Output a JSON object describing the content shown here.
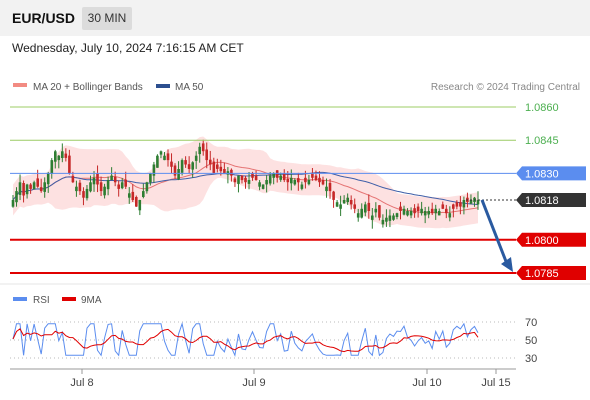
{
  "header": {
    "symbol": "EUR/USD",
    "timeframe": "30 MIN",
    "datetime": "Wednesday, July 10, 2024 7:16:15 AM CET"
  },
  "legend": {
    "ma20": "MA 20 + Bollinger Bands",
    "ma50": "MA 50",
    "copyright": "Research © 2024 Trading Central"
  },
  "rsi_legend": {
    "rsi": "RSI",
    "ma": "9MA"
  },
  "colors": {
    "up_candle": "#2e7d32",
    "down_candle": "#c62828",
    "ma20": "#e57373",
    "ma50": "#3f5fa8",
    "bollinger_fill": "#fcd9d9",
    "resistance_green": "#9ccc65",
    "pivot_blue": "#5b8def",
    "support_red": "#e00000",
    "price_tag": "#333333",
    "arrow": "#2a5aa0",
    "rsi_line": "#5b8def",
    "rsi_ma": "#e00000"
  },
  "chart_data": [
    {
      "type": "line",
      "title": "",
      "description": "EUR/USD 30-minute candlestick with MA 20 + Bollinger Bands and MA 50",
      "xlabel": "",
      "ylabel": "",
      "x_ticks": [
        "Jul 8",
        "Jul 9",
        "Jul 10",
        "Jul 15"
      ],
      "ylim": [
        1.078,
        1.0866
      ],
      "levels": [
        {
          "value": "1.0860",
          "kind": "resistance"
        },
        {
          "value": "1.0845",
          "kind": "resistance"
        },
        {
          "value": "1.0830",
          "kind": "pivot"
        },
        {
          "value": "1.0800",
          "kind": "support"
        },
        {
          "value": "1.0785",
          "kind": "support"
        }
      ],
      "current_price": "1.0818",
      "forecast": {
        "from": 1.0818,
        "to": 1.0785,
        "direction": "down"
      },
      "closes": [
        1.0818,
        1.0822,
        1.0826,
        1.082,
        1.0825,
        1.0823,
        1.0826,
        1.0824,
        1.0822,
        1.0826,
        1.083,
        1.0836,
        1.084,
        1.0838,
        1.084,
        1.0837,
        1.083,
        1.0826,
        1.0824,
        1.0822,
        1.0819,
        1.0823,
        1.0826,
        1.0828,
        1.0825,
        1.0822,
        1.0824,
        1.0827,
        1.0829,
        1.0826,
        1.0823,
        1.0826,
        1.0824,
        1.0821,
        1.0818,
        1.0815,
        1.0818,
        1.0822,
        1.0826,
        1.083,
        1.0834,
        1.0838,
        1.084,
        1.0838,
        1.0836,
        1.0833,
        1.0829,
        1.0832,
        1.0836,
        1.0834,
        1.0832,
        1.0835,
        1.0838,
        1.0842,
        1.084,
        1.0836,
        1.0834,
        1.083,
        1.0832,
        1.0831,
        1.083,
        1.0831,
        1.0829,
        1.0826,
        1.0829,
        1.0827,
        1.0826,
        1.0827,
        1.0828,
        1.0827,
        1.0826,
        1.0825,
        1.0827,
        1.0829,
        1.083,
        1.0828,
        1.0829,
        1.0827,
        1.0826,
        1.0828,
        1.0827,
        1.0826,
        1.0825,
        1.0826,
        1.0827,
        1.0828,
        1.0827,
        1.0826,
        1.0825,
        1.0824,
        1.0822,
        1.0818,
        1.0817,
        1.0816,
        1.0818,
        1.0819,
        1.0816,
        1.0814,
        1.0812,
        1.0814,
        1.0816,
        1.0813,
        1.0811,
        1.0814,
        1.081,
        1.0809,
        1.081,
        1.0811,
        1.0811,
        1.0812,
        1.0813,
        1.0814,
        1.0813,
        1.0813,
        1.0812,
        1.0813,
        1.0814,
        1.0813,
        1.0813,
        1.0812,
        1.0814,
        1.0813,
        1.0814,
        1.0812,
        1.0812,
        1.0814,
        1.0815,
        1.0815,
        1.0818,
        1.0817,
        1.0818,
        1.0819,
        1.0818
      ]
    },
    {
      "type": "line",
      "title": "",
      "description": "RSI with 9-period moving average",
      "ylim": [
        20,
        80
      ],
      "y_ticks": [
        70,
        50,
        30
      ],
      "rsi_last": 58,
      "rsi_ma_last": 53
    }
  ]
}
